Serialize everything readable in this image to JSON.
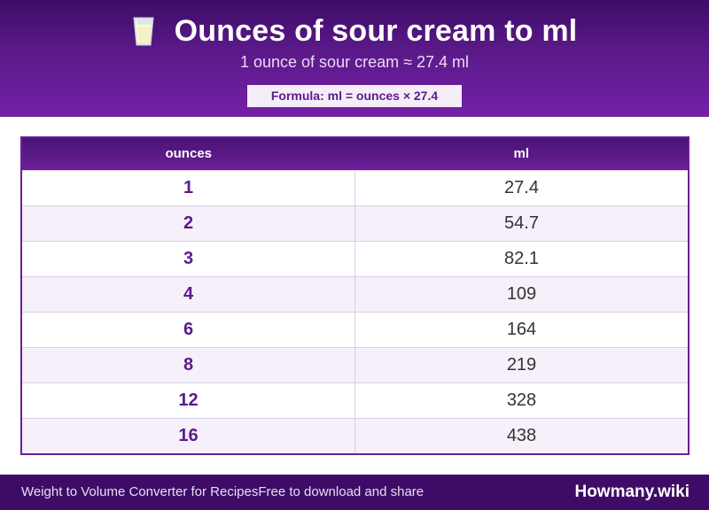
{
  "header": {
    "icon": "milk-glass-icon",
    "title": "Ounces of sour cream to ml",
    "subtitle": "1 ounce of sour cream ≈ 27.4 ml",
    "formula": "Formula: ml = ounces × 27.4"
  },
  "table": {
    "headers": [
      "ounces",
      "ml"
    ],
    "rows": [
      [
        "1",
        "27.4"
      ],
      [
        "2",
        "54.7"
      ],
      [
        "3",
        "82.1"
      ],
      [
        "4",
        "109"
      ],
      [
        "6",
        "164"
      ],
      [
        "8",
        "219"
      ],
      [
        "12",
        "328"
      ],
      [
        "16",
        "438"
      ]
    ]
  },
  "footer": {
    "left_text": "Weight to Volume Converter for RecipesFree to download and share",
    "brand": "Howmany.wiki"
  },
  "colors": {
    "primary": "#5b1a8a",
    "header_dark": "#3e0c66",
    "row_alt": "#f5f0fa"
  }
}
